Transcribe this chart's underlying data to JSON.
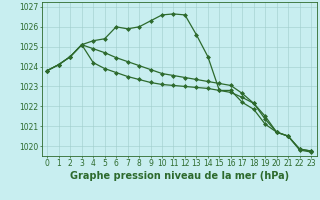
{
  "title": "Graphe pression niveau de la mer (hPa)",
  "x_values": [
    0,
    1,
    2,
    3,
    4,
    5,
    6,
    7,
    8,
    9,
    10,
    11,
    12,
    13,
    14,
    15,
    16,
    17,
    18,
    19,
    20,
    21,
    22,
    23
  ],
  "line1": [
    1023.8,
    1024.1,
    1024.5,
    1025.1,
    1025.3,
    1025.4,
    1026.0,
    1025.9,
    1026.0,
    1026.3,
    1026.6,
    1026.65,
    1026.6,
    1025.6,
    1024.5,
    1022.8,
    1022.8,
    1022.2,
    1021.85,
    1021.1,
    1020.7,
    1020.5,
    1019.8,
    1019.7
  ],
  "line2": [
    1023.8,
    1024.1,
    1024.5,
    1025.1,
    1024.9,
    1024.7,
    1024.45,
    1024.25,
    1024.05,
    1023.85,
    1023.65,
    1023.55,
    1023.45,
    1023.35,
    1023.25,
    1023.15,
    1023.05,
    1022.65,
    1022.15,
    1021.35,
    1020.7,
    1020.5,
    1019.85,
    1019.75
  ],
  "line3": [
    1023.8,
    1024.1,
    1024.5,
    1025.1,
    1024.2,
    1023.9,
    1023.7,
    1023.5,
    1023.35,
    1023.2,
    1023.1,
    1023.05,
    1023.0,
    1022.95,
    1022.9,
    1022.8,
    1022.7,
    1022.45,
    1022.15,
    1021.5,
    1020.7,
    1020.5,
    1019.85,
    1019.75
  ],
  "line_color": "#2d6a2d",
  "bg_color": "#c8eef0",
  "grid_color": "#a0cccc",
  "ylim_min": 1019.5,
  "ylim_max": 1027.25,
  "yticks": [
    1020,
    1021,
    1022,
    1023,
    1024,
    1025,
    1026,
    1027
  ],
  "xtick_labels": [
    "0",
    "1",
    "2",
    "3",
    "4",
    "5",
    "6",
    "7",
    "8",
    "9",
    "10",
    "11",
    "12",
    "13",
    "14",
    "15",
    "16",
    "17",
    "18",
    "19",
    "20",
    "21",
    "22",
    "23"
  ],
  "marker": "D",
  "marker_size": 2.0,
  "line_width": 0.9,
  "title_fontsize": 7.0,
  "tick_fontsize": 5.5
}
